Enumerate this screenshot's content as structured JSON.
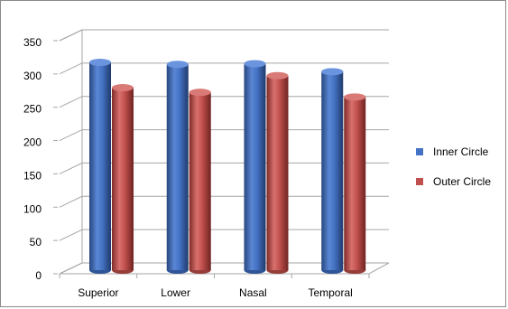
{
  "chart_data": {
    "type": "bar",
    "title": "",
    "xlabel": "",
    "ylabel": "",
    "categories": [
      "Superior",
      "Lower",
      "Nasal",
      "Temporal"
    ],
    "series": [
      {
        "name": "Inner Circle",
        "values": [
          312,
          309,
          310,
          298
        ],
        "color": "#4472C4"
      },
      {
        "name": "Outer Circle",
        "values": [
          274,
          267,
          292,
          260
        ],
        "color": "#C0504D"
      }
    ],
    "ylim": [
      0,
      350
    ],
    "yticks": [
      0,
      50,
      100,
      150,
      200,
      250,
      300,
      350
    ],
    "grid": true,
    "legend": "right",
    "style": "3d-cylinder"
  }
}
